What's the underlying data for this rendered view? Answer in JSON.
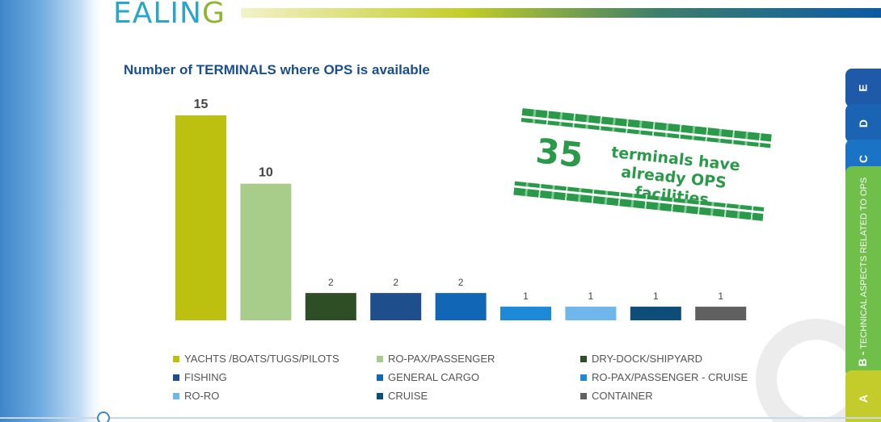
{
  "header": {
    "logo_text_main": "EALIN",
    "logo_text_end": "G"
  },
  "chart_data": {
    "type": "bar",
    "title": "Number of TERMINALS where OPS is available",
    "categories": [
      "YACHTS /BOATS/TUGS/PILOTS",
      "RO-PAX/PASSENGER",
      "DRY-DOCK/SHIPYARD",
      "FISHING",
      "GENERAL CARGO",
      "RO-PAX/PASSENGER - CRUISE",
      "RO-RO",
      "CRUISE",
      "CONTAINER"
    ],
    "values": [
      15,
      10,
      2,
      2,
      2,
      1,
      1,
      1,
      1
    ],
    "colors": [
      "#bcc10f",
      "#a8cc8a",
      "#2e4e26",
      "#1e4f8c",
      "#1266b6",
      "#1c8ad6",
      "#6fb6ea",
      "#0d4d78",
      "#606060"
    ],
    "ylim": [
      0,
      15
    ],
    "grid": false,
    "legend": "bottom"
  },
  "stamp": {
    "number": "35",
    "line1": "terminals have",
    "line2": "already OPS facilities"
  },
  "side_tabs": {
    "e": "E",
    "d": "D",
    "c": "C",
    "b_letter": "B -",
    "b_text": "TECHNICAL ASPECTS RELATED TO OPS",
    "a": "A"
  }
}
